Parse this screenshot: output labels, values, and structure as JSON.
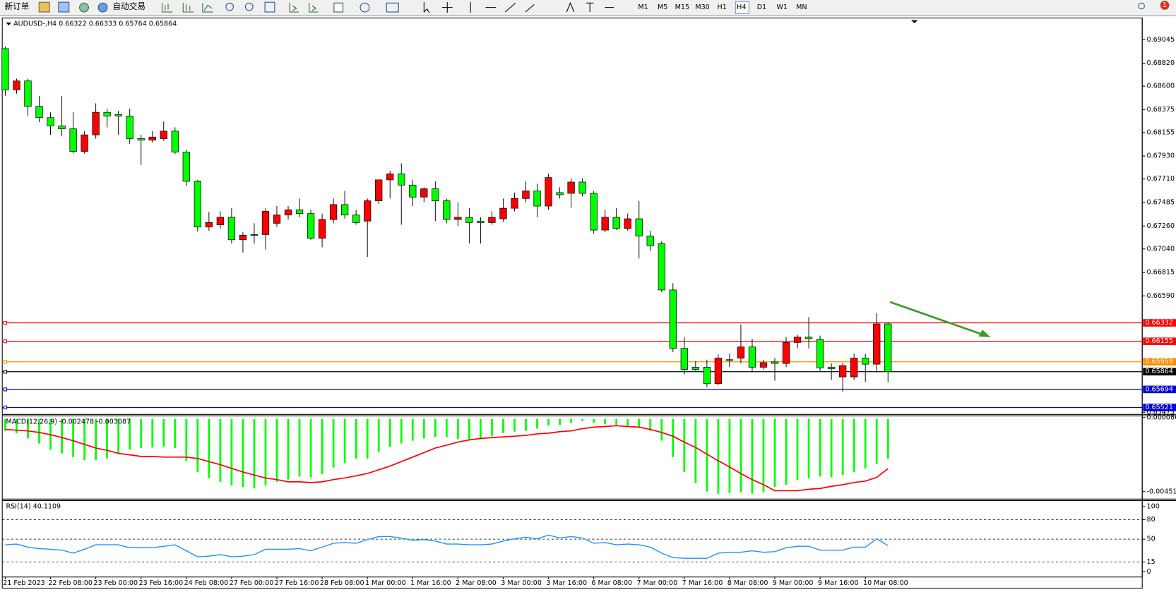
{
  "toolbar": {
    "new_order": "新订单",
    "auto_trading": "自动交易",
    "timeframes": [
      "M1",
      "M5",
      "M15",
      "M30",
      "H1",
      "H4",
      "D1",
      "W1",
      "MN"
    ],
    "notifications": "1"
  },
  "chart_data": [
    {
      "type": "candlestick",
      "title": "AUDUSD-,H4 0.66322 0.66333 0.65764 0.65864",
      "categories": [
        "21 Feb 2023",
        null,
        null,
        null,
        "22 Feb 08:00",
        null,
        null,
        null,
        "23 Feb 00:00",
        null,
        null,
        null,
        "23 Feb 16:00",
        null,
        null,
        null,
        "24 Feb 08:00",
        null,
        null,
        null,
        "27 Feb 00:00",
        null,
        null,
        null,
        "27 Feb 16:00",
        null,
        null,
        null,
        "28 Feb 08:00",
        null,
        null,
        null,
        "1 Mar 00:00",
        null,
        null,
        null,
        "1 Mar 16:00",
        null,
        null,
        null,
        "2 Mar 08:00",
        null,
        null,
        null,
        "3 Mar 00:00",
        null,
        null,
        null,
        "3 Mar 16:00",
        null,
        null,
        null,
        "6 Mar 08:00",
        null,
        null,
        null,
        "7 Mar 00:00",
        null,
        null,
        null,
        "7 Mar 16:00",
        null,
        null,
        null,
        "8 Mar 08:00",
        null,
        null,
        null,
        "9 Mar 00:00",
        null,
        null,
        null,
        "9 Mar 16:00",
        null,
        null,
        null,
        "10 Mar 08:00",
        null,
        null
      ],
      "open": [
        0.68959,
        0.68564,
        0.6865,
        0.68406,
        0.68298,
        0.68219,
        0.68191,
        0.67975,
        0.68133,
        0.68349,
        0.68327,
        0.68313,
        0.68097,
        0.68083,
        0.68097,
        0.68169,
        0.67968,
        0.67688,
        0.6725,
        0.67272,
        0.67343,
        0.67128,
        0.67178,
        0.67178,
        0.67286,
        0.67365,
        0.67415,
        0.67379,
        0.67142,
        0.67322,
        0.67465,
        0.67365,
        0.67307,
        0.67501,
        0.67702,
        0.6776,
        0.67652,
        0.67537,
        0.67616,
        0.67501,
        0.67322,
        0.67343,
        0.67307,
        0.67293,
        0.67329,
        0.6743,
        0.67523,
        0.67595,
        0.67451,
        0.6758,
        0.67573,
        0.67681,
        0.67573,
        0.67221,
        0.67343,
        0.67236,
        0.67329,
        0.67164,
        0.67092,
        0.66647,
        0.66087,
        0.65907,
        0.65907,
        0.65749,
        0.65979,
        0.65994,
        0.66101,
        0.65907,
        0.65958,
        0.65943,
        0.66144,
        0.66195,
        0.66173,
        0.65907,
        0.65814,
        0.65814,
        0.65994,
        0.65936,
        0.66322
      ],
      "high": [
        0.6898,
        0.68672,
        0.68672,
        0.68507,
        0.68349,
        0.68507,
        0.68349,
        0.68169,
        0.68435,
        0.68384,
        0.68363,
        0.68384,
        0.68133,
        0.68169,
        0.68262,
        0.68205,
        0.6799,
        0.67702,
        0.67394,
        0.67401,
        0.6743,
        0.672,
        0.67286,
        0.6743,
        0.67451,
        0.67451,
        0.67523,
        0.67415,
        0.67379,
        0.67523,
        0.67595,
        0.67415,
        0.67523,
        0.67702,
        0.67789,
        0.6786,
        0.67702,
        0.67631,
        0.67688,
        0.67523,
        0.67487,
        0.6743,
        0.67343,
        0.67401,
        0.67523,
        0.6758,
        0.67688,
        0.67666,
        0.6776,
        0.67631,
        0.67717,
        0.67717,
        0.67595,
        0.67415,
        0.6743,
        0.67379,
        0.67501,
        0.67214,
        0.67114,
        0.66712,
        0.66195,
        0.65965,
        0.65979,
        0.66029,
        0.66037,
        0.66317,
        0.6618,
        0.65979,
        0.65994,
        0.66195,
        0.66216,
        0.66388,
        0.66209,
        0.65943,
        0.6595,
        0.66037,
        0.66037,
        0.66424,
        0.66333
      ],
      "low": [
        0.68507,
        0.68528,
        0.68313,
        0.68255,
        0.68133,
        0.68119,
        0.67954,
        0.67954,
        0.68097,
        0.68205,
        0.68133,
        0.68047,
        0.67846,
        0.68061,
        0.68076,
        0.67947,
        0.67645,
        0.67207,
        0.67214,
        0.67236,
        0.67092,
        0.67006,
        0.67092,
        0.67035,
        0.6725,
        0.67322,
        0.67343,
        0.67128,
        0.67056,
        0.67286,
        0.67329,
        0.67272,
        0.66963,
        0.67473,
        0.67523,
        0.67272,
        0.67451,
        0.67487,
        0.67307,
        0.67286,
        0.67257,
        0.67092,
        0.67092,
        0.67272,
        0.673,
        0.67401,
        0.67487,
        0.67343,
        0.67415,
        0.67523,
        0.67437,
        0.67544,
        0.67185,
        0.672,
        0.67221,
        0.67214,
        0.66948,
        0.6702,
        0.66625,
        0.66051,
        0.65836,
        0.65871,
        0.65714,
        0.65735,
        0.65907,
        0.65943,
        0.65857,
        0.65886,
        0.65778,
        0.65907,
        0.66087,
        0.66087,
        0.65871,
        0.65785,
        0.6567,
        0.65785,
        0.65764,
        0.65857,
        0.65764
      ],
      "close": [
        0.68564,
        0.6865,
        0.68406,
        0.68298,
        0.68219,
        0.68191,
        0.67975,
        0.68133,
        0.68349,
        0.68313,
        0.68313,
        0.68097,
        0.68083,
        0.68112,
        0.68169,
        0.67968,
        0.67688,
        0.6725,
        0.67293,
        0.67343,
        0.67128,
        0.67171,
        0.67171,
        0.67401,
        0.67365,
        0.67415,
        0.67379,
        0.67142,
        0.67322,
        0.67465,
        0.67365,
        0.67293,
        0.67501,
        0.67702,
        0.6776,
        0.67652,
        0.67537,
        0.67616,
        0.67501,
        0.67322,
        0.67343,
        0.67293,
        0.67293,
        0.67343,
        0.6743,
        0.67523,
        0.67595,
        0.67451,
        0.67724,
        0.67559,
        0.67681,
        0.67573,
        0.67221,
        0.67343,
        0.67236,
        0.67329,
        0.67164,
        0.67071,
        0.66647,
        0.66087,
        0.65886,
        0.65886,
        0.65749,
        0.65994,
        0.65972,
        0.66101,
        0.65907,
        0.6595,
        0.65943,
        0.66144,
        0.66195,
        0.6618,
        0.659,
        0.65893,
        0.65922,
        0.65994,
        0.65936,
        0.66322,
        0.65864
      ],
      "up_color": "#ff0000",
      "down_color": "#00ff00",
      "ylim": [
        0.65469,
        0.69253
      ],
      "yticks": [
        0.69045,
        {
          "value": 0.6882,
          "label": "0.68820"
        },
        {
          "value": 0.686,
          "label": "0.68600"
        },
        0.68375,
        0.68155,
        {
          "value": 0.6793,
          "label": "0.67930"
        },
        {
          "value": 0.6771,
          "label": "0.67710"
        },
        0.67485,
        {
          "value": 0.6726,
          "label": "0.67260"
        },
        {
          "value": 0.6704,
          "label": "0.67040"
        },
        0.66815,
        {
          "value": 0.6659,
          "label": "0.66590"
        },
        0.65475
      ],
      "levels": [
        {
          "value": 0.66332,
          "color": "#ff0000"
        },
        {
          "value": 0.66155,
          "color": "#ff0000"
        },
        {
          "value": 0.65959,
          "color": "#ff8c00"
        },
        {
          "value": 0.65864,
          "color": "#000000"
        },
        {
          "value": 0.65694,
          "color": "#0000dd"
        },
        {
          "value": 0.65521,
          "color": "#0000dd"
        }
      ]
    },
    {
      "type": "macd",
      "title": "MACD(12,26,9) -0.002478 -0.003087",
      "series": [
        {
          "color": "#00ff00",
          "values": [
            -0.00074,
            -0.00088,
            -0.00121,
            -0.00153,
            -0.00191,
            -0.00214,
            -0.00237,
            -0.00256,
            -0.00256,
            -0.00246,
            -0.00214,
            -0.00191,
            -0.00181,
            -0.00177,
            -0.00172,
            -0.00181,
            -0.0026,
            -0.0033,
            -0.00367,
            -0.00391,
            -0.00414,
            -0.00423,
            -0.00432,
            -0.00414,
            -0.00391,
            -0.00377,
            -0.00358,
            -0.00363,
            -0.00344,
            -0.00302,
            -0.00274,
            -0.00246,
            -0.00246,
            -0.00205,
            -0.00172,
            -0.00153,
            -0.00135,
            -0.00121,
            -0.00112,
            -0.00112,
            -0.00126,
            -0.00135,
            -0.00126,
            -0.00107,
            -0.00088,
            -0.00079,
            -0.00074,
            -0.0006,
            -0.00042,
            -0.00037,
            -0.00023,
            -0.00014,
            -0.00023,
            -0.00033,
            -0.00042,
            -0.00042,
            -0.00051,
            -0.00074,
            -0.00135,
            -0.00237,
            -0.0033,
            -0.004,
            -0.00451,
            -0.00465,
            -0.0046,
            -0.00456,
            -0.00465,
            -0.00456,
            -0.00423,
            -0.00409,
            -0.00381,
            -0.00367,
            -0.00358,
            -0.00363,
            -0.00349,
            -0.0033,
            -0.00307,
            -0.00279,
            -0.002478
          ]
        },
        {
          "color": "#ff0000",
          "values": [
            -0.00065,
            -0.0007,
            -0.00074,
            -0.00084,
            -0.00098,
            -0.00116,
            -0.00135,
            -0.00158,
            -0.00181,
            -0.00195,
            -0.00214,
            -0.00223,
            -0.00233,
            -0.00233,
            -0.00237,
            -0.00237,
            -0.00237,
            -0.00246,
            -0.00265,
            -0.00284,
            -0.00307,
            -0.0033,
            -0.00349,
            -0.00367,
            -0.00377,
            -0.00391,
            -0.00391,
            -0.00395,
            -0.00391,
            -0.00377,
            -0.00367,
            -0.00353,
            -0.00339,
            -0.00316,
            -0.00293,
            -0.00265,
            -0.00237,
            -0.00209,
            -0.00181,
            -0.00163,
            -0.00144,
            -0.0013,
            -0.00121,
            -0.00116,
            -0.00112,
            -0.00107,
            -0.00102,
            -0.00093,
            -0.00088,
            -0.00079,
            -0.00074,
            -0.0006,
            -0.00051,
            -0.00047,
            -0.00042,
            -0.00047,
            -0.00051,
            -0.00065,
            -0.00084,
            -0.00107,
            -0.00144,
            -0.00177,
            -0.00219,
            -0.0026,
            -0.00298,
            -0.00339,
            -0.00377,
            -0.00409,
            -0.00446,
            -0.00446,
            -0.00446,
            -0.00437,
            -0.00432,
            -0.00419,
            -0.00409,
            -0.00395,
            -0.00386,
            -0.00363,
            -0.003087
          ]
        }
      ],
      "ylim": [
        -0.00498,
        0.00019
      ],
      "yticks": [
        8.6e-05,
        -0.004519
      ]
    },
    {
      "type": "line",
      "title": "RSI(14) 40.1109",
      "series": [
        {
          "color": "#1e90ff",
          "values": [
            41.4,
            42.5,
            37.9,
            35.6,
            34.5,
            33.3,
            28.7,
            34.5,
            41.4,
            41.4,
            41.4,
            36.8,
            36.8,
            36.8,
            39.1,
            41.4,
            32.2,
            23.0,
            24.1,
            26.4,
            23.0,
            24.1,
            26.4,
            34.5,
            34.5,
            34.5,
            35.6,
            32.2,
            37.9,
            43.7,
            44.8,
            43.7,
            49.4,
            54.0,
            54.0,
            51.7,
            48.3,
            49.4,
            47.1,
            42.5,
            42.5,
            41.4,
            41.4,
            42.5,
            47.1,
            50.6,
            52.9,
            50.6,
            56.3,
            51.7,
            54.0,
            51.7,
            43.7,
            44.8,
            41.4,
            42.5,
            41.4,
            37.9,
            28.7,
            21.8,
            20.7,
            20.7,
            20.7,
            28.7,
            29.9,
            29.9,
            32.2,
            29.9,
            31.0,
            36.8,
            39.1,
            39.1,
            33.3,
            33.3,
            33.3,
            37.9,
            37.9,
            50.6,
            40.1109
          ]
        }
      ],
      "ylim": [
        -8,
        109.2
      ],
      "yticks": [
        100,
        80,
        50,
        15,
        0
      ],
      "levels": [
        80,
        50,
        15
      ]
    }
  ]
}
